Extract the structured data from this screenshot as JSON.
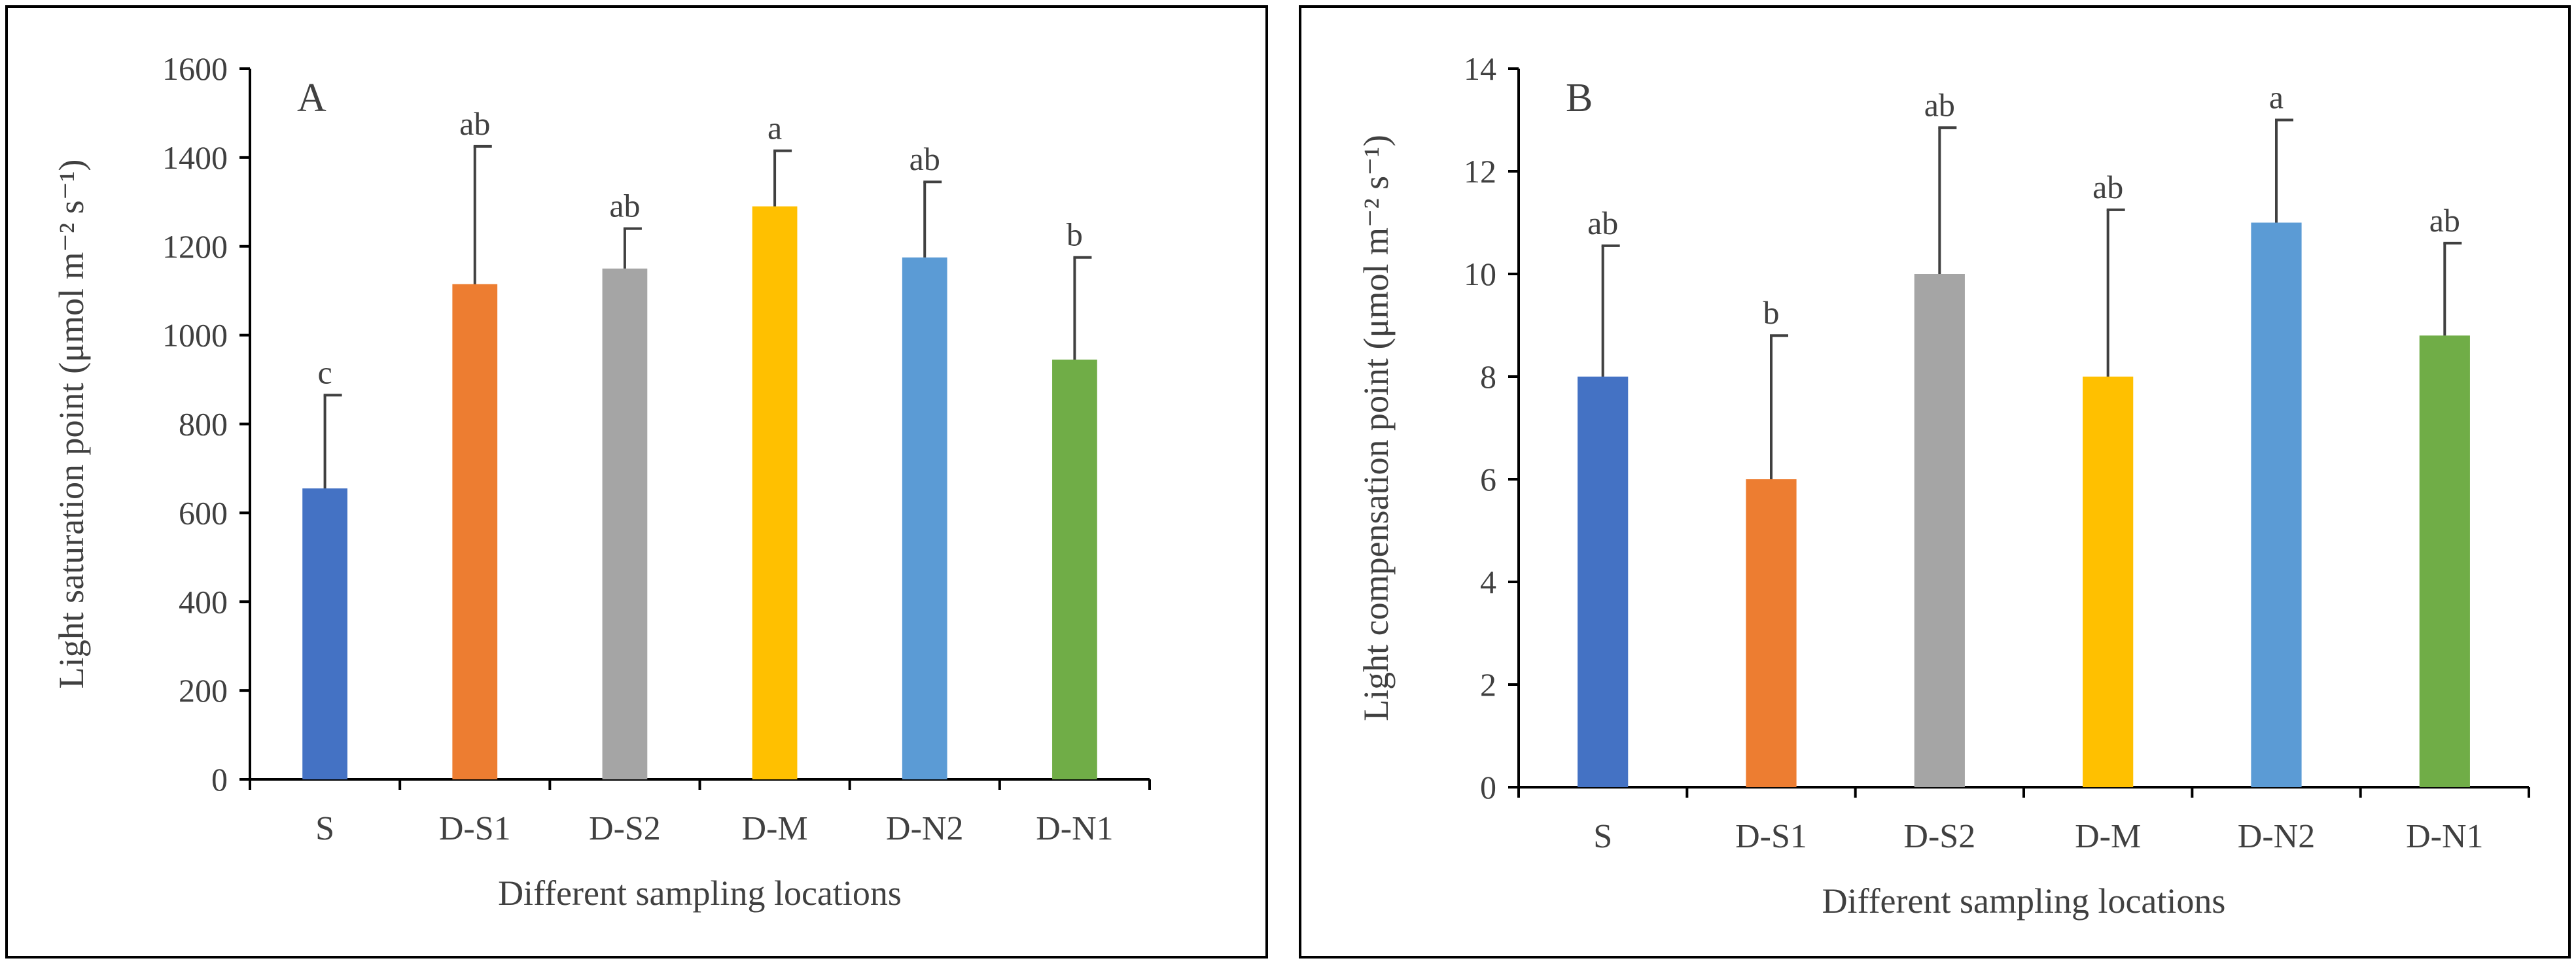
{
  "chart_data": [
    {
      "type": "bar",
      "panel_letter": "A",
      "categories": [
        "S",
        "D-S1",
        "D-S2",
        "D-M",
        "D-N2",
        "D-N1"
      ],
      "values": [
        655,
        1115,
        1150,
        1290,
        1175,
        945
      ],
      "error": [
        210,
        310,
        90,
        125,
        170,
        230
      ],
      "labels": [
        "c",
        "ab",
        "ab",
        "a",
        "ab",
        "b"
      ],
      "colors": [
        "#4472C4",
        "#ED7D31",
        "#A5A5A5",
        "#FFC000",
        "#5B9BD5",
        "#70AD47"
      ],
      "xlabel": "Different sampling locations",
      "ylabel": "Light saturation point (μmol m⁻² s⁻¹)",
      "ylim": [
        0,
        1600
      ],
      "yticks": [
        "0",
        "200",
        "400",
        "600",
        "800",
        "1000",
        "1200",
        "1400",
        "1600"
      ]
    },
    {
      "type": "bar",
      "panel_letter": "B",
      "categories": [
        "S",
        "D-S1",
        "D-S2",
        "D-M",
        "D-N2",
        "D-N1"
      ],
      "values": [
        8.0,
        6.0,
        10.0,
        8.0,
        11.0,
        8.8
      ],
      "error": [
        2.55,
        2.8,
        2.85,
        3.25,
        2.0,
        1.8
      ],
      "labels": [
        "ab",
        "b",
        "ab",
        "ab",
        "a",
        "ab"
      ],
      "colors": [
        "#4472C4",
        "#ED7D31",
        "#A5A5A5",
        "#FFC000",
        "#5B9BD5",
        "#70AD47"
      ],
      "xlabel": "Different sampling locations",
      "ylabel": "Light compensation point (μmol m⁻² s⁻¹)",
      "ylim": [
        0,
        14
      ],
      "yticks": [
        "0",
        "2",
        "4",
        "6",
        "8",
        "10",
        "12",
        "14"
      ]
    }
  ]
}
